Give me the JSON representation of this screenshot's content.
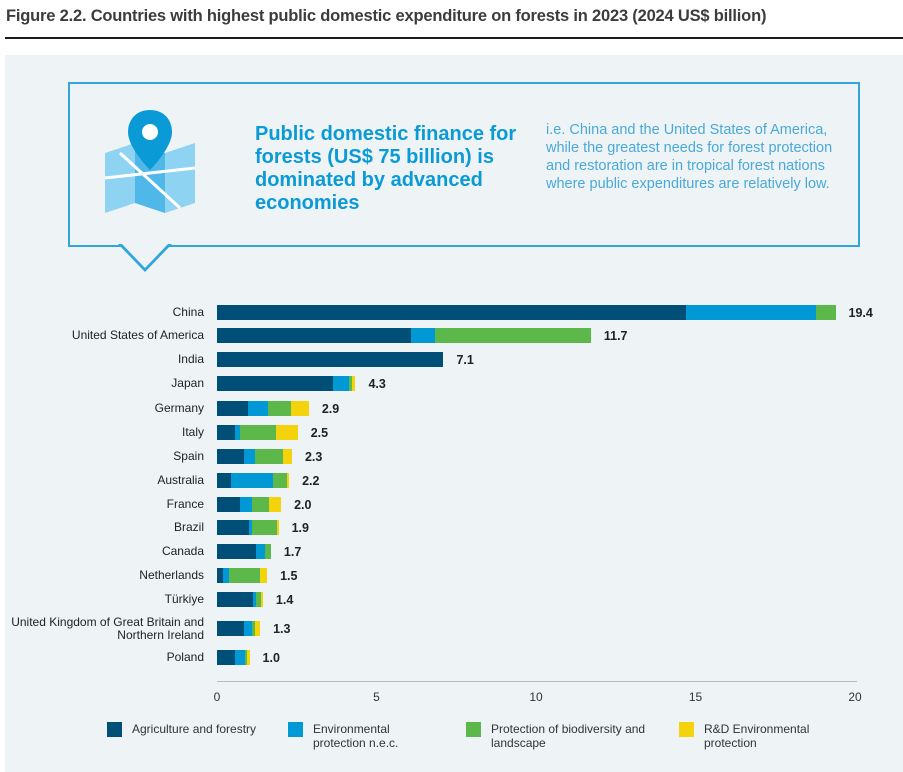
{
  "title": "Figure 2.2. Countries with highest public domestic expenditure on forests in 2023 (2024 US$ billion)",
  "callout": {
    "icon": "map-pin-icon",
    "headline": "Public domestic finance for forests (US$ 75 billion) is dominated by advanced economies",
    "text": "i.e. China and the United States of America, while the greatest needs for forest protection and restoration are in tropical forest nations where public expenditures are relatively low."
  },
  "chart_data": {
    "type": "bar",
    "orientation": "horizontal",
    "stacked": true,
    "categories": [
      "China",
      "United States of America",
      "India",
      "Japan",
      "Germany",
      "Italy",
      "Spain",
      "Australia",
      "France",
      "Brazil",
      "Canada",
      "Netherlands",
      "Türkiye",
      "United Kingdom of Great Britain and Northern Ireland",
      "Poland"
    ],
    "totals": [
      "19.4",
      "11.7",
      "7.1",
      "4.3",
      "2.9",
      "2.5",
      "2.3",
      "2.2",
      "2.0",
      "1.9",
      "1.7",
      "1.5",
      "1.4",
      "1.3",
      "1.0"
    ],
    "series": [
      {
        "name": "Agriculture and forestry",
        "color": "#004f77",
        "values": [
          14.7,
          6.07,
          7.1,
          3.63,
          0.96,
          0.56,
          0.85,
          0.44,
          0.72,
          1.0,
          1.22,
          0.19,
          1.13,
          0.85,
          0.56
        ]
      },
      {
        "name": "Environmental protection n.e.c.",
        "color": "#0099d6",
        "values": [
          4.07,
          0.75,
          0,
          0.5,
          0.64,
          0.16,
          0.34,
          1.32,
          0.38,
          0.09,
          0.28,
          0.19,
          0.09,
          0.25,
          0.31
        ]
      },
      {
        "name": "Protection of biodiversity and landscape",
        "color": "#5db84b",
        "values": [
          0.62,
          4.9,
          0,
          0.11,
          0.72,
          1.12,
          0.88,
          0.44,
          0.53,
          0.8,
          0.19,
          0.97,
          0.16,
          0.09,
          0.06
        ]
      },
      {
        "name": "R&D Environmental protection",
        "color": "#f4d20c",
        "values": [
          0,
          0,
          0,
          0.1,
          0.56,
          0.69,
          0.28,
          0.06,
          0.38,
          0.04,
          0,
          0.22,
          0.06,
          0.16,
          0.09
        ]
      }
    ],
    "xlim": [
      0,
      20
    ],
    "xticks": [
      "0",
      "5",
      "10",
      "15",
      "20"
    ],
    "grid": false,
    "legend": "bottom"
  }
}
